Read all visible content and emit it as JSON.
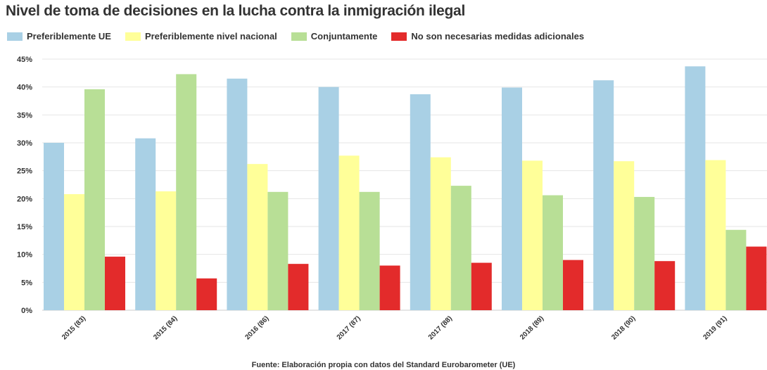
{
  "chart_data": {
    "type": "bar",
    "title": "Nivel de toma de decisiones en la lucha contra la inmigración ilegal",
    "categories": [
      "2015 (83)",
      "2015 (84)",
      "2016 (86)",
      "2017 (87)",
      "2017 (88)",
      "2018 (89)",
      "2018 (90)",
      "2019 (91)"
    ],
    "series": [
      {
        "name": "Preferiblemente UE",
        "color": "#a9d0e5",
        "values": [
          30.0,
          30.8,
          41.5,
          40.0,
          38.7,
          39.9,
          41.2,
          43.7
        ]
      },
      {
        "name": "Preferiblemente nivel nacional",
        "color": "#ffff99",
        "values": [
          20.8,
          21.3,
          26.2,
          27.7,
          27.4,
          26.8,
          26.7,
          26.9
        ]
      },
      {
        "name": "Conjuntamente",
        "color": "#b8df96",
        "values": [
          39.6,
          42.3,
          21.2,
          21.2,
          22.3,
          20.6,
          20.3,
          14.4
        ]
      },
      {
        "name": "No son necesarias medidas adicionales",
        "color": "#e32b2b",
        "values": [
          9.6,
          5.7,
          8.3,
          8.0,
          8.5,
          9.0,
          8.8,
          11.4
        ]
      }
    ],
    "yticks": [
      "0%",
      "5%",
      "10%",
      "15%",
      "20%",
      "25%",
      "30%",
      "35%",
      "40%",
      "45%"
    ],
    "ylim": [
      0,
      45
    ],
    "grid": true,
    "legend_position": "top-left",
    "source": "Fuente: Elaboración propia con datos del Standard Eurobarometer (UE)"
  }
}
